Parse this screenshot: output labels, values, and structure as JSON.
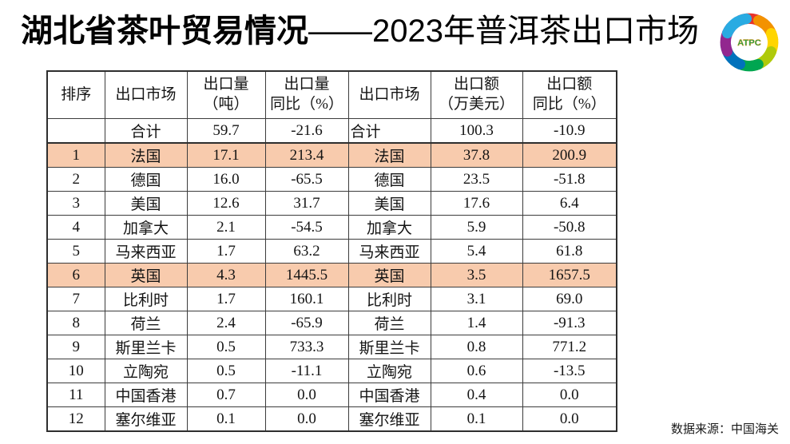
{
  "title": {
    "bold": "湖北省茶叶贸易情况",
    "regular": "——2023年普洱茶出口市场"
  },
  "logo": {
    "label": "ATPC",
    "text_color": "#00a651",
    "text_outline": "#f7941d",
    "swirl_colors": [
      "#e8332a",
      "#f39200",
      "#ffd500",
      "#afca0b",
      "#00a651",
      "#0072bc",
      "#92278f",
      "#29abe2"
    ]
  },
  "colors": {
    "highlight": "#F8CBAD",
    "border": "#3c3c3c",
    "title": "#000000"
  },
  "table": {
    "headers": [
      [
        "排序"
      ],
      [
        "出口市场"
      ],
      [
        "出口量",
        "（吨）"
      ],
      [
        "出口量",
        "同比（%）"
      ],
      [
        "出口市场"
      ],
      [
        "出口额",
        "（万美元）"
      ],
      [
        "出口额",
        "同比（%）"
      ]
    ],
    "rows": [
      {
        "rank": "",
        "market": "合计",
        "volume": "59.7",
        "volume_yoy": "-21.6",
        "market2": "合计",
        "value": "100.3",
        "value_yoy": "-10.9",
        "highlight": false,
        "total": true
      },
      {
        "rank": "1",
        "market": "法国",
        "volume": "17.1",
        "volume_yoy": "213.4",
        "market2": "法国",
        "value": "37.8",
        "value_yoy": "200.9",
        "highlight": true,
        "total": false
      },
      {
        "rank": "2",
        "market": "德国",
        "volume": "16.0",
        "volume_yoy": "-65.5",
        "market2": "德国",
        "value": "23.5",
        "value_yoy": "-51.8",
        "highlight": false,
        "total": false
      },
      {
        "rank": "3",
        "market": "美国",
        "volume": "12.6",
        "volume_yoy": "31.7",
        "market2": "美国",
        "value": "17.6",
        "value_yoy": "6.4",
        "highlight": false,
        "total": false
      },
      {
        "rank": "4",
        "market": "加拿大",
        "volume": "2.1",
        "volume_yoy": "-54.5",
        "market2": "加拿大",
        "value": "5.9",
        "value_yoy": "-50.8",
        "highlight": false,
        "total": false
      },
      {
        "rank": "5",
        "market": "马来西亚",
        "volume": "1.7",
        "volume_yoy": "63.2",
        "market2": "马来西亚",
        "value": "5.4",
        "value_yoy": "61.8",
        "highlight": false,
        "total": false
      },
      {
        "rank": "6",
        "market": "英国",
        "volume": "4.3",
        "volume_yoy": "1445.5",
        "market2": "英国",
        "value": "3.5",
        "value_yoy": "1657.5",
        "highlight": true,
        "total": false
      },
      {
        "rank": "7",
        "market": "比利时",
        "volume": "1.7",
        "volume_yoy": "160.1",
        "market2": "比利时",
        "value": "3.1",
        "value_yoy": "69.0",
        "highlight": false,
        "total": false
      },
      {
        "rank": "8",
        "market": "荷兰",
        "volume": "2.4",
        "volume_yoy": "-65.9",
        "market2": "荷兰",
        "value": "1.4",
        "value_yoy": "-91.3",
        "highlight": false,
        "total": false
      },
      {
        "rank": "9",
        "market": "斯里兰卡",
        "volume": "0.5",
        "volume_yoy": "733.3",
        "market2": "斯里兰卡",
        "value": "0.8",
        "value_yoy": "771.2",
        "highlight": false,
        "total": false
      },
      {
        "rank": "10",
        "market": "立陶宛",
        "volume": "0.5",
        "volume_yoy": "-11.1",
        "market2": "立陶宛",
        "value": "0.6",
        "value_yoy": "-13.5",
        "highlight": false,
        "total": false
      },
      {
        "rank": "11",
        "market": "中国香港",
        "volume": "0.7",
        "volume_yoy": "0.0",
        "market2": "中国香港",
        "value": "0.4",
        "value_yoy": "0.0",
        "highlight": false,
        "total": false
      },
      {
        "rank": "12",
        "market": "塞尔维亚",
        "volume": "0.1",
        "volume_yoy": "0.0",
        "market2": "塞尔维亚",
        "value": "0.1",
        "value_yoy": "0.0",
        "highlight": false,
        "total": false
      }
    ]
  },
  "source_note": "数据来源：中国海关"
}
